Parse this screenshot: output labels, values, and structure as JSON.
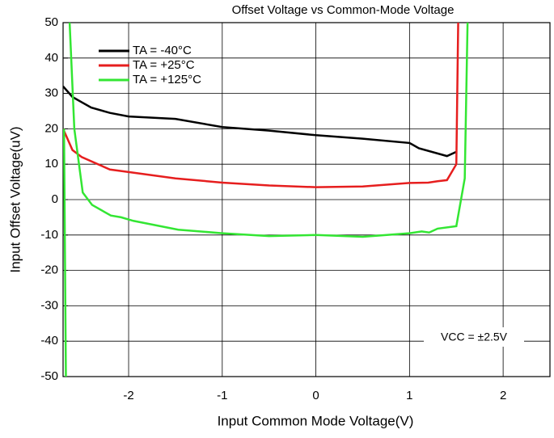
{
  "chart_data": {
    "type": "line",
    "title": "Offset Voltage vs Common-Mode Voltage",
    "xlabel": "Input Common Mode Voltage(V)",
    "ylabel": "Input Offset Voltage(uV)",
    "annotation": "VCC = ±2.5V",
    "xlim": [
      -2.7,
      2.5
    ],
    "xticks": [
      -2,
      -1,
      0,
      1,
      2
    ],
    "ylim": [
      -50,
      50
    ],
    "yticks": [
      -50,
      -40,
      -30,
      -20,
      -10,
      0,
      10,
      20,
      30,
      40,
      50
    ],
    "grid": true,
    "legend": "upper left",
    "series": [
      {
        "name": "TA = -40°C",
        "color": "#000000",
        "x": [
          -2.7,
          -2.6,
          -2.5,
          -2.4,
          -2.2,
          -2.0,
          -1.5,
          -1.0,
          -0.5,
          0,
          0.5,
          1.0,
          1.1,
          1.4,
          1.5
        ],
        "values": [
          32,
          29,
          27.5,
          26,
          24.5,
          23.5,
          22.8,
          20.5,
          19.5,
          18.2,
          17.2,
          16,
          14.5,
          12.3,
          13.5
        ]
      },
      {
        "name": "TA = +25°C",
        "color": "#e61e1e",
        "x": [
          -2.7,
          -2.6,
          -2.5,
          -2.2,
          -2.0,
          -1.5,
          -1.0,
          -0.5,
          0,
          0.5,
          1.0,
          1.2,
          1.3,
          1.4,
          1.5,
          1.52
        ],
        "values": [
          20,
          14,
          12,
          8.5,
          7.8,
          6,
          4.8,
          4,
          3.5,
          3.7,
          4.7,
          4.8,
          5.2,
          5.5,
          10,
          50
        ]
      },
      {
        "name": "TA = +125°C",
        "color": "#33e633",
        "x": [
          -2.67,
          -2.69,
          -2.65,
          -2.63,
          -2.58,
          -2.49,
          -2.39,
          -2.19,
          -2.08,
          -1.95,
          -1.47,
          -1.0,
          -0.5,
          0,
          0.5,
          1.0,
          1.13,
          1.21,
          1.3,
          1.5,
          1.59,
          1.62
        ],
        "values": [
          -50,
          20,
          null,
          50,
          20,
          2,
          -1.5,
          -4.5,
          -5,
          -6,
          -8.5,
          -9.5,
          -10.3,
          -10,
          -10.5,
          -9.5,
          -9,
          -9.3,
          -8.2,
          -7.5,
          6,
          50
        ]
      }
    ]
  }
}
